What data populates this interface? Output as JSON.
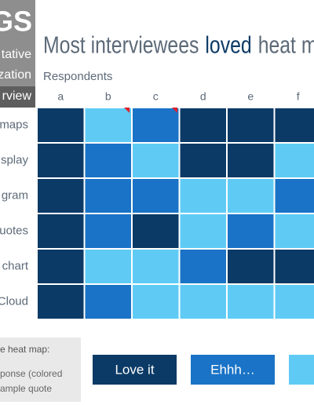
{
  "sidebar": {
    "title": "GS",
    "lines": [
      "tative",
      "zation",
      "rview"
    ]
  },
  "title": {
    "parts": [
      "Most interviewees",
      "loved",
      "heat map"
    ]
  },
  "grid": {
    "axis_label": "Respondents",
    "columns": [
      "a",
      "b",
      "c",
      "d",
      "e",
      "f"
    ],
    "rows": [
      "maps",
      "splay",
      "gram",
      "uotes",
      "chart",
      "Cloud"
    ],
    "cells": [
      [
        "#0b3a66",
        "#5fcbf5",
        "#1a73c6",
        "#0b3a66",
        "#0b3a66",
        "#0b3a66"
      ],
      [
        "#0b3a66",
        "#1a73c6",
        "#5fcbf5",
        "#0b3a66",
        "#0b3a66",
        "#5fcbf5"
      ],
      [
        "#0b3a66",
        "#1a73c6",
        "#1a73c6",
        "#5fcbf5",
        "#5fcbf5",
        "#1a73c6"
      ],
      [
        "#0b3a66",
        "#1a73c6",
        "#0b3a66",
        "#5fcbf5",
        "#1a73c6",
        "#5fcbf5"
      ],
      [
        "#0b3a66",
        "#5fcbf5",
        "#5fcbf5",
        "#1a73c6",
        "#0b3a66",
        "#0b3a66"
      ],
      [
        "#0b3a66",
        "#1a73c6",
        "#5fcbf5",
        "#5fcbf5",
        "#5fcbf5",
        "#5fcbf5"
      ]
    ]
  },
  "legend": {
    "heading": "e heat map:",
    "lines": [
      "ponse (colored",
      "ample quote"
    ],
    "items": [
      {
        "label": "Love it",
        "color": "#0b3a66"
      },
      {
        "label": "Ehhh…",
        "color": "#1a73c6"
      },
      {
        "color": "#5fcbf5"
      }
    ]
  }
}
